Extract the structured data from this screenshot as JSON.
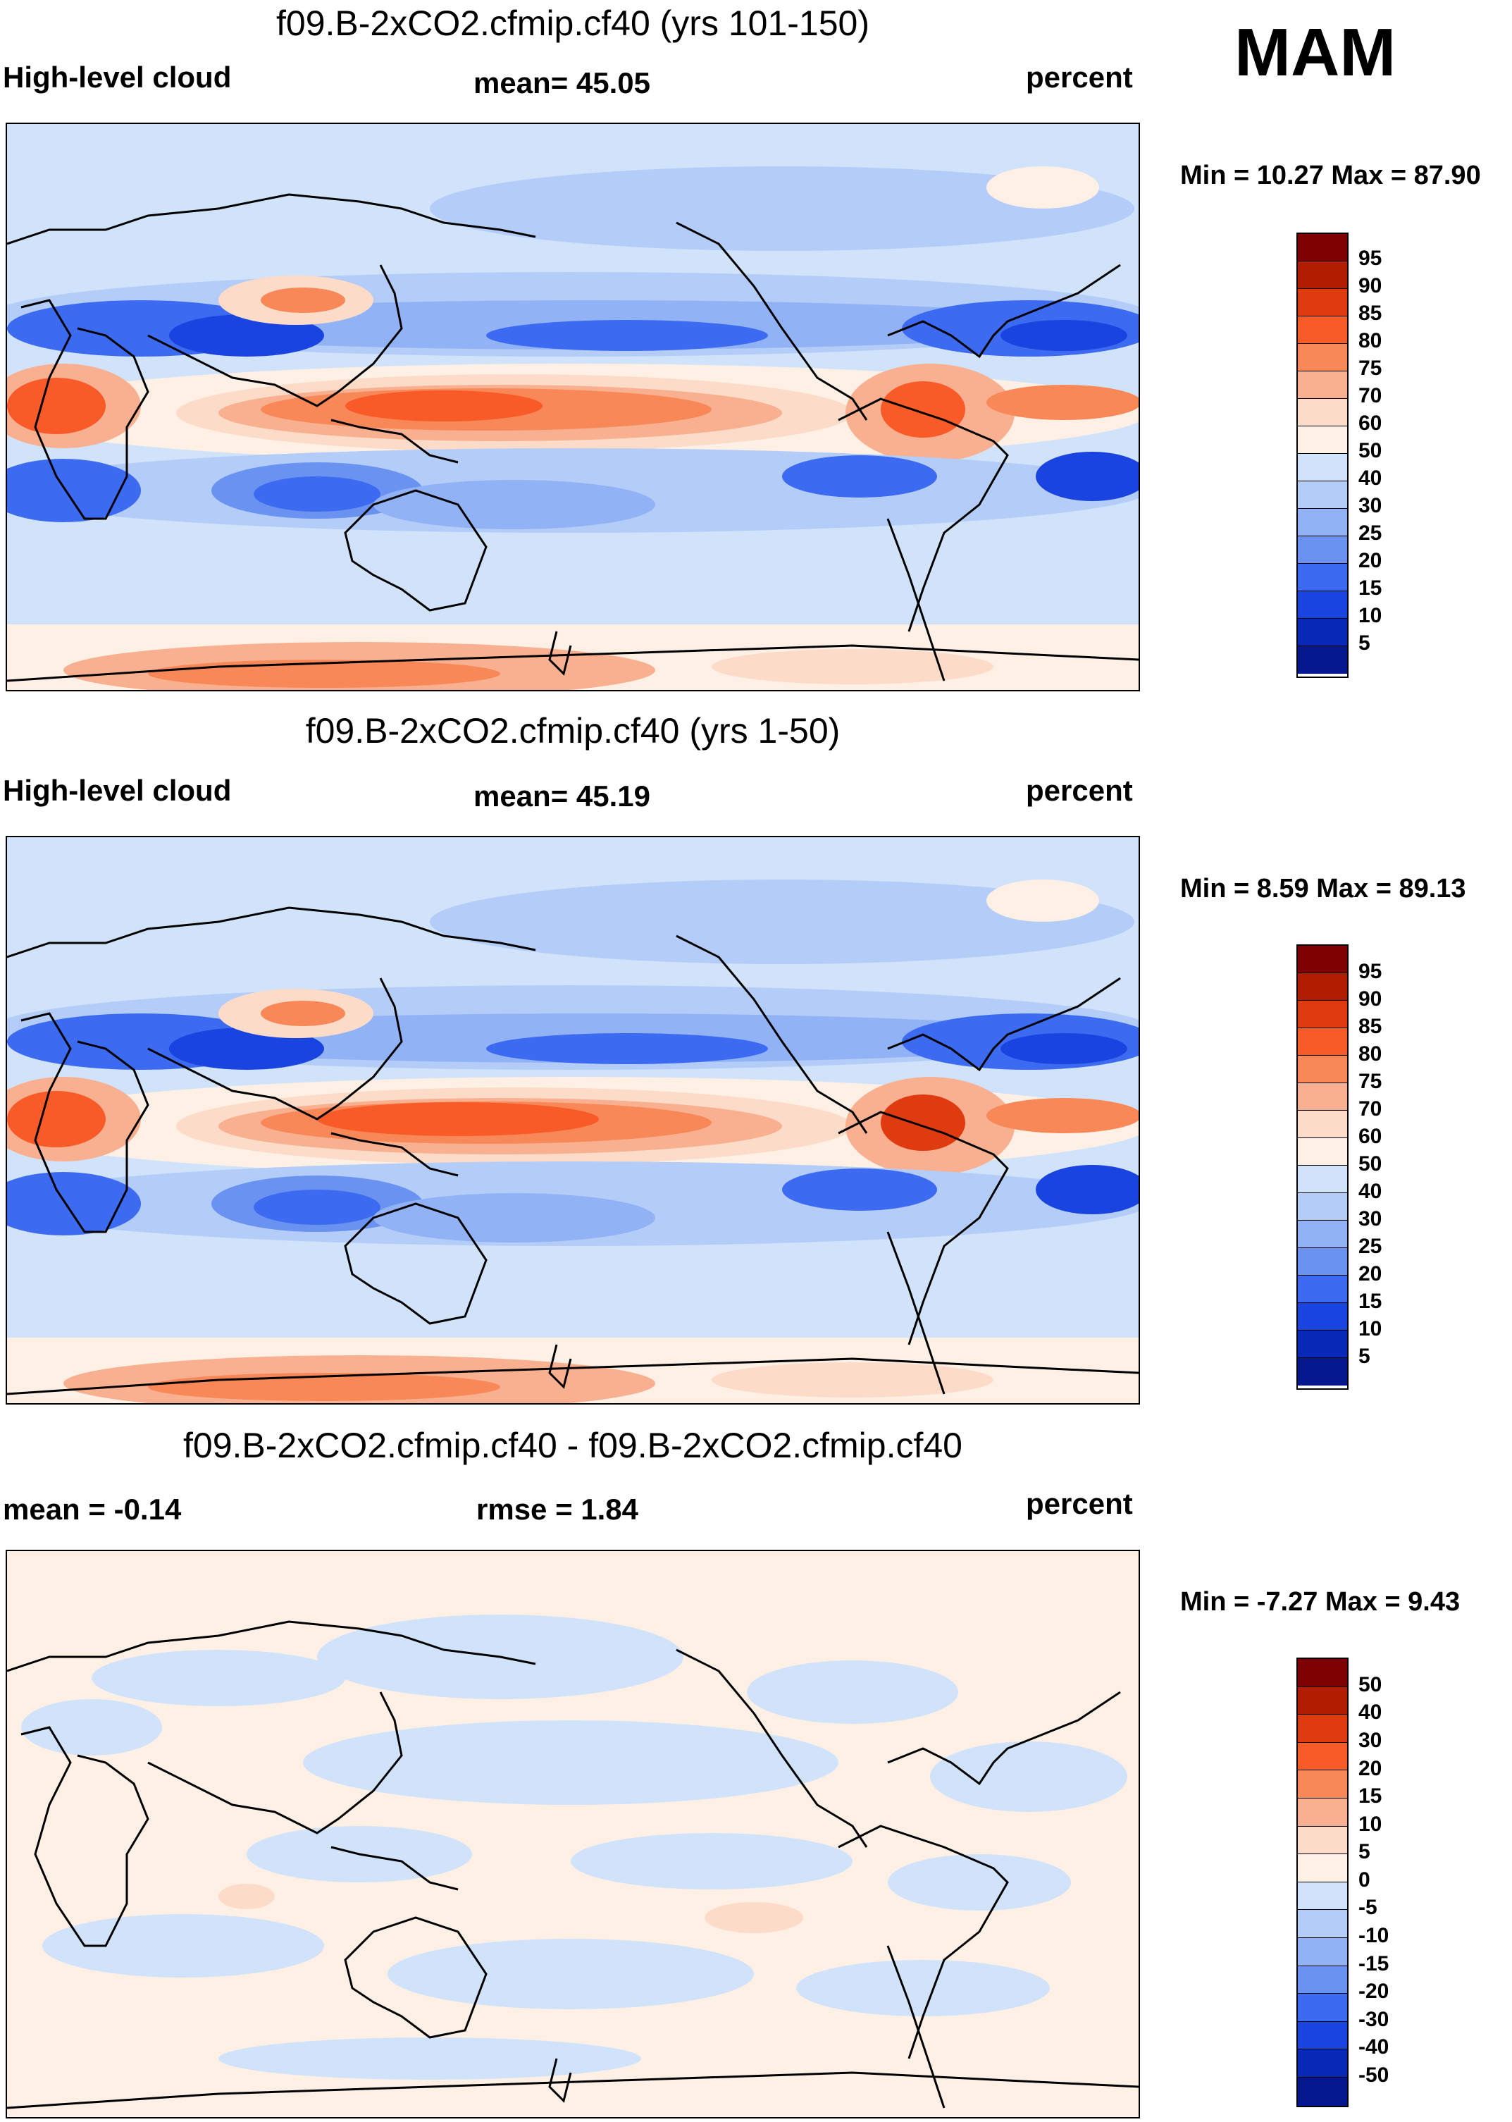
{
  "season": "MAM",
  "panels": [
    {
      "id": "panel1",
      "title": "f09.B-2xCO2.cfmip.cf40 (yrs 101-150)",
      "left_label": "High-level cloud",
      "center_label": "mean=  45.05",
      "right_label": "percent",
      "minmax": "Min =  10.27 Max =  87.90",
      "colorbar_ticks": [
        "95",
        "90",
        "85",
        "80",
        "75",
        "70",
        "60",
        "50",
        "40",
        "30",
        "25",
        "20",
        "15",
        "10",
        "5"
      ]
    },
    {
      "id": "panel2",
      "title": "f09.B-2xCO2.cfmip.cf40 (yrs 1-50)",
      "left_label": "High-level cloud",
      "center_label": "mean=  45.19",
      "right_label": "percent",
      "minmax": "Min =   8.59 Max =  89.13",
      "colorbar_ticks": [
        "95",
        "90",
        "85",
        "80",
        "75",
        "70",
        "60",
        "50",
        "40",
        "30",
        "25",
        "20",
        "15",
        "10",
        "5"
      ]
    },
    {
      "id": "panel3",
      "title": "f09.B-2xCO2.cfmip.cf40 - f09.B-2xCO2.cfmip.cf40",
      "left_label": "mean =  -0.14",
      "center_label": "rmse =    1.84",
      "right_label": "percent",
      "minmax": "Min =  -7.27 Max =   9.43",
      "colorbar_ticks": [
        "50",
        "40",
        "30",
        "20",
        "15",
        "10",
        "5",
        "0",
        "-5",
        "-10",
        "-15",
        "-20",
        "-30",
        "-40",
        "-50"
      ]
    }
  ],
  "colors": {
    "scale": [
      "#7f0000",
      "#b21c00",
      "#e03a10",
      "#f85a28",
      "#f88858",
      "#f8b090",
      "#fcdcc8",
      "#fff0e6",
      "#d0e3fa",
      "#b4cdf8",
      "#92b2f6",
      "#6a92f0",
      "#3c6af0",
      "#1a44e0",
      "#0828b8",
      "#061890"
    ],
    "ocean": "#d0e3fa",
    "coast": "#000000"
  }
}
